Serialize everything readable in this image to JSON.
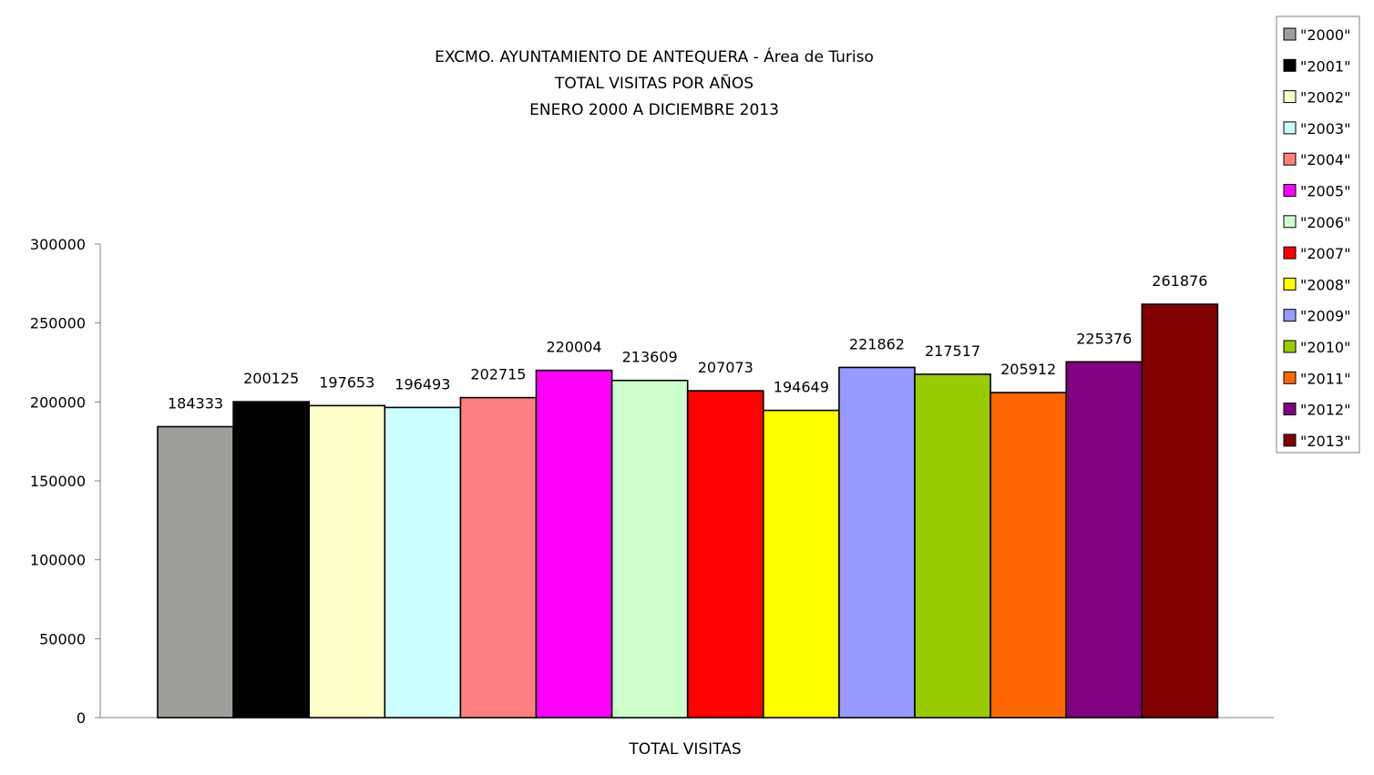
{
  "chart_data": {
    "type": "bar",
    "title_lines": [
      "EXCMO. AYUNTAMIENTO DE ANTEQUERA - Área de Turiso",
      "TOTAL VISITAS POR AÑOS",
      "ENERO 2000 A DICIEMBRE 2013"
    ],
    "categories": [
      "TOTAL VISITAS"
    ],
    "xlabel": "TOTAL VISITAS",
    "ylabel": "",
    "ylim": [
      0,
      300000
    ],
    "yticks": [
      "0",
      "50000",
      "100000",
      "150000",
      "200000",
      "250000",
      "300000"
    ],
    "grid": false,
    "legend_position": "right",
    "series": [
      {
        "name": "\"2000\"",
        "value": 184333,
        "label": "184333",
        "color": "#A09E9B"
      },
      {
        "name": "\"2001\"",
        "value": 200125,
        "label": "200125",
        "color": "#000000"
      },
      {
        "name": "\"2002\"",
        "value": 197653,
        "label": "197653",
        "color": "#FFFFCC"
      },
      {
        "name": "\"2003\"",
        "value": 196493,
        "label": "196493",
        "color": "#CCFFFF"
      },
      {
        "name": "\"2004\"",
        "value": 202715,
        "label": "202715",
        "color": "#FF8080"
      },
      {
        "name": "\"2005\"",
        "value": 220004,
        "label": "220004",
        "color": "#FF00FF"
      },
      {
        "name": "\"2006\"",
        "value": 213609,
        "label": "213609",
        "color": "#CCFFCC"
      },
      {
        "name": "\"2007\"",
        "value": 207073,
        "label": "207073",
        "color": "#FF0000"
      },
      {
        "name": "\"2008\"",
        "value": 194649,
        "label": "194649",
        "color": "#FFFF00"
      },
      {
        "name": "\"2009\"",
        "value": 221862,
        "label": "221862",
        "color": "#9999FF"
      },
      {
        "name": "\"2010\"",
        "value": 217517,
        "label": "217517",
        "color": "#99CC00"
      },
      {
        "name": "\"2011\"",
        "value": 205912,
        "label": "205912",
        "color": "#FF6600"
      },
      {
        "name": "\"2012\"",
        "value": 225376,
        "label": "225376",
        "color": "#800080"
      },
      {
        "name": "\"2013\"",
        "value": 261876,
        "label": "261876",
        "color": "#800000"
      }
    ]
  }
}
